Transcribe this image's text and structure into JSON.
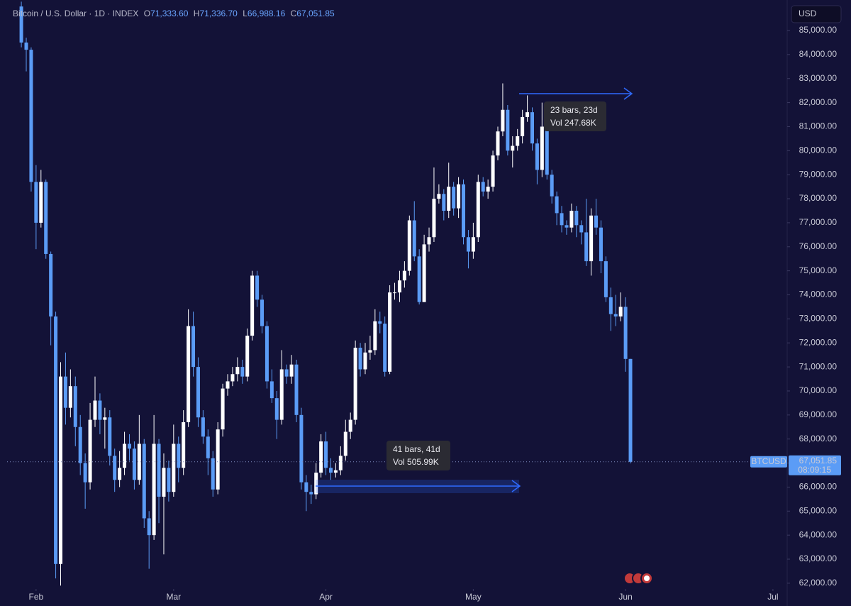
{
  "chart_data": {
    "type": "candlestick",
    "symbol": "Bitcoin / U.S. Dollar · 1D · INDEX",
    "header_values": [
      {
        "key": "O",
        "label": "71,333.60"
      },
      {
        "key": "H",
        "label": "71,336.70"
      },
      {
        "key": "L",
        "label": "66,988.16"
      },
      {
        "key": "C",
        "label": "67,051.85"
      }
    ],
    "currency": "USD",
    "ticker": "BTCUSD",
    "price_label": "67,051.85",
    "countdown": "08:09:15",
    "up_color": "#ffffff",
    "down_color": "#5b9cf6",
    "grid": false,
    "open": [
      86000,
      84500,
      84200,
      78700,
      77000,
      78700,
      75700,
      73100,
      62800,
      70600,
      69300,
      70200,
      68500,
      67000,
      66200,
      68800,
      69600,
      68800,
      68900,
      67300,
      66300,
      66800,
      67800,
      67600,
      66300,
      67800,
      64700,
      64000,
      67800,
      65600,
      66800,
      65800,
      67800,
      66800,
      68700,
      72700,
      71000,
      68900,
      68100,
      67200,
      65900,
      68400,
      70100,
      70400,
      70700,
      71000,
      70600,
      72300,
      74800,
      73800,
      72700,
      70400,
      69700,
      68800,
      70900,
      70600,
      71100,
      69000,
      66200,
      65800,
      65700,
      66600,
      67900,
      66800,
      66600,
      66700,
      67300,
      68300,
      68800,
      71800,
      70900,
      71600,
      71700,
      72900,
      72800,
      70800,
      74100,
      74100,
      74600,
      75000,
      77100,
      75600,
      73700,
      76100,
      76400,
      78000,
      78200,
      77500,
      78500,
      77600,
      78600,
      76400,
      75800,
      76400,
      78700,
      78300,
      78500,
      79800,
      80800,
      81700,
      80000,
      80200,
      80600,
      81400,
      81600,
      80300,
      79200,
      81000,
      79000,
      78100,
      77400,
      76900,
      76800,
      77500,
      76900,
      76600,
      75400,
      77300,
      76800,
      75400,
      73900,
      73200,
      73100,
      73500,
      71333.6
    ],
    "high": [
      86200,
      84700,
      84300,
      79400,
      79200,
      78800,
      75800,
      73300,
      71200,
      71600,
      70900,
      70600,
      69000,
      67400,
      69500,
      70600,
      69900,
      69300,
      69200,
      67600,
      67500,
      68300,
      68200,
      67900,
      69000,
      68000,
      65000,
      69000,
      68000,
      67400,
      67100,
      68600,
      68100,
      69200,
      73400,
      73300,
      71400,
      69200,
      68400,
      67500,
      68700,
      70300,
      70700,
      71000,
      71400,
      71300,
      72600,
      75000,
      75000,
      74000,
      72900,
      70900,
      70000,
      71700,
      71100,
      71500,
      71300,
      69300,
      66500,
      66100,
      67000,
      68200,
      68300,
      67200,
      67000,
      67700,
      68800,
      69100,
      72100,
      72000,
      72000,
      72300,
      73400,
      73300,
      73100,
      74400,
      74500,
      75000,
      75400,
      77300,
      77900,
      75900,
      76500,
      76800,
      79300,
      78600,
      78400,
      79500,
      78700,
      78900,
      78800,
      76700,
      77000,
      79000,
      78900,
      78800,
      80000,
      81000,
      82800,
      81900,
      80600,
      80900,
      81700,
      82300,
      81800,
      80500,
      82000,
      81200,
      79200,
      78300,
      77700,
      77100,
      77800,
      77700,
      77100,
      78000,
      77600,
      78000,
      77100,
      75600,
      74300,
      74000,
      74100,
      73900,
      71336.7
    ],
    "low": [
      84300,
      83300,
      78300,
      75900,
      76800,
      75500,
      71900,
      62200,
      61900,
      68600,
      68900,
      67700,
      66500,
      65100,
      65900,
      68500,
      68200,
      67600,
      66900,
      65800,
      66000,
      66500,
      67100,
      65900,
      66100,
      64300,
      62600,
      63800,
      64500,
      63200,
      65400,
      65600,
      66200,
      66500,
      68500,
      70600,
      68500,
      67800,
      66500,
      65600,
      65700,
      68100,
      69800,
      70200,
      70400,
      70300,
      70400,
      72100,
      73500,
      72400,
      70100,
      69500,
      68000,
      68600,
      70300,
      70300,
      68700,
      65900,
      65000,
      65300,
      65500,
      66400,
      66500,
      66300,
      66400,
      66500,
      67100,
      68000,
      68600,
      70600,
      70700,
      71300,
      71500,
      72400,
      70600,
      70700,
      73800,
      73700,
      74300,
      74800,
      75400,
      73600,
      73700,
      75800,
      76200,
      77800,
      77100,
      77200,
      77300,
      77200,
      76100,
      75100,
      75500,
      76200,
      78100,
      78000,
      78300,
      79600,
      80600,
      79800,
      79300,
      80000,
      80300,
      81200,
      80000,
      78600,
      78900,
      78800,
      77800,
      76900,
      76600,
      76500,
      76600,
      76400,
      76100,
      75200,
      74800,
      76500,
      74900,
      73700,
      72500,
      72700,
      72900,
      70800,
      66988.16
    ],
    "close": [
      84500,
      84200,
      78700,
      77000,
      78700,
      75700,
      73100,
      62800,
      70600,
      69300,
      70200,
      68500,
      67000,
      66200,
      68800,
      69600,
      68800,
      68900,
      67300,
      66300,
      66800,
      67800,
      67600,
      66300,
      67800,
      64700,
      64000,
      67800,
      65600,
      66800,
      65800,
      67800,
      66800,
      68700,
      72700,
      71000,
      68900,
      68100,
      67200,
      65900,
      68400,
      70100,
      70400,
      70700,
      71000,
      70600,
      72300,
      74800,
      73800,
      72700,
      70400,
      69700,
      68800,
      70900,
      70600,
      71100,
      69000,
      66200,
      65800,
      65700,
      66600,
      67900,
      66800,
      66600,
      66700,
      67300,
      68300,
      68800,
      71800,
      70900,
      71600,
      71700,
      72900,
      72800,
      70800,
      74100,
      74100,
      74600,
      75000,
      77100,
      75600,
      73700,
      76100,
      76400,
      78000,
      78200,
      77500,
      78500,
      77600,
      78600,
      76400,
      75800,
      76400,
      78700,
      78300,
      78500,
      79800,
      80800,
      81700,
      80000,
      80200,
      80600,
      81400,
      81600,
      80300,
      79200,
      81000,
      79000,
      78100,
      77400,
      76900,
      76800,
      77500,
      76900,
      76600,
      75400,
      77300,
      76800,
      75400,
      73900,
      73200,
      73100,
      73500,
      71333.6,
      67051.85
    ],
    "xlim": [
      -2.9,
      155.9
    ],
    "xticks": [
      {
        "value": 3,
        "label": "Feb"
      },
      {
        "value": 31,
        "label": "Mar"
      },
      {
        "value": 62,
        "label": "Apr"
      },
      {
        "value": 92,
        "label": "May"
      },
      {
        "value": 123,
        "label": "Jun"
      },
      {
        "value": 153,
        "label": "Jul"
      }
    ],
    "ylim": [
      61760,
      86270
    ],
    "yticks": [
      {
        "value": 62000,
        "label": "62,000.00"
      },
      {
        "value": 63000,
        "label": "63,000.00"
      },
      {
        "value": 64000,
        "label": "64,000.00"
      },
      {
        "value": 65000,
        "label": "65,000.00"
      },
      {
        "value": 66000,
        "label": "66,000.00"
      },
      {
        "value": 67000,
        "label": "67,000.00"
      },
      {
        "value": 68000,
        "label": "68,000.00"
      },
      {
        "value": 69000,
        "label": "69,000.00"
      },
      {
        "value": 70000,
        "label": "70,000.00"
      },
      {
        "value": 71000,
        "label": "71,000.00"
      },
      {
        "value": 72000,
        "label": "72,000.00"
      },
      {
        "value": 73000,
        "label": "73,000.00"
      },
      {
        "value": 74000,
        "label": "74,000.00"
      },
      {
        "value": 75000,
        "label": "75,000.00"
      },
      {
        "value": 76000,
        "label": "76,000.00"
      },
      {
        "value": 77000,
        "label": "77,000.00"
      },
      {
        "value": 78000,
        "label": "78,000.00"
      },
      {
        "value": 79000,
        "label": "79,000.00"
      },
      {
        "value": 80000,
        "label": "80,000.00"
      },
      {
        "value": 81000,
        "label": "81,000.00"
      },
      {
        "value": 82000,
        "label": "82,000.00"
      },
      {
        "value": 83000,
        "label": "83,000.00"
      },
      {
        "value": 84000,
        "label": "84,000.00"
      },
      {
        "value": 85000,
        "label": "85,000.00"
      }
    ],
    "measures": [
      {
        "bars": "23 bars, 23d",
        "volume": "Vol 247.68K"
      },
      {
        "bars": "41 bars, 41d",
        "volume": "Vol 505.99K"
      }
    ]
  }
}
